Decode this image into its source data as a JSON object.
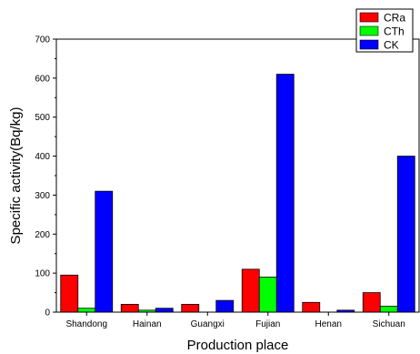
{
  "chart_data": {
    "type": "bar",
    "title": "",
    "xlabel": "Production place",
    "ylabel": "Specific activity(Bq/kg)",
    "categories": [
      "Shandong",
      "Hainan",
      "Guangxi",
      "Fujian",
      "Henan",
      "Sichuan"
    ],
    "series": [
      {
        "name": "CRa",
        "color": "#ff0000",
        "values": [
          95,
          20,
          20,
          110,
          25,
          50
        ]
      },
      {
        "name": "CTh",
        "color": "#00ff00",
        "values": [
          10,
          5,
          0,
          90,
          0,
          15
        ]
      },
      {
        "name": "CK",
        "color": "#0000ff",
        "values": [
          310,
          10,
          30,
          610,
          5,
          400
        ]
      }
    ],
    "ylim": [
      0,
      700
    ],
    "yticks": [
      0,
      100,
      200,
      300,
      400,
      500,
      600,
      700
    ],
    "legend_position": "top-right",
    "grid": false
  }
}
